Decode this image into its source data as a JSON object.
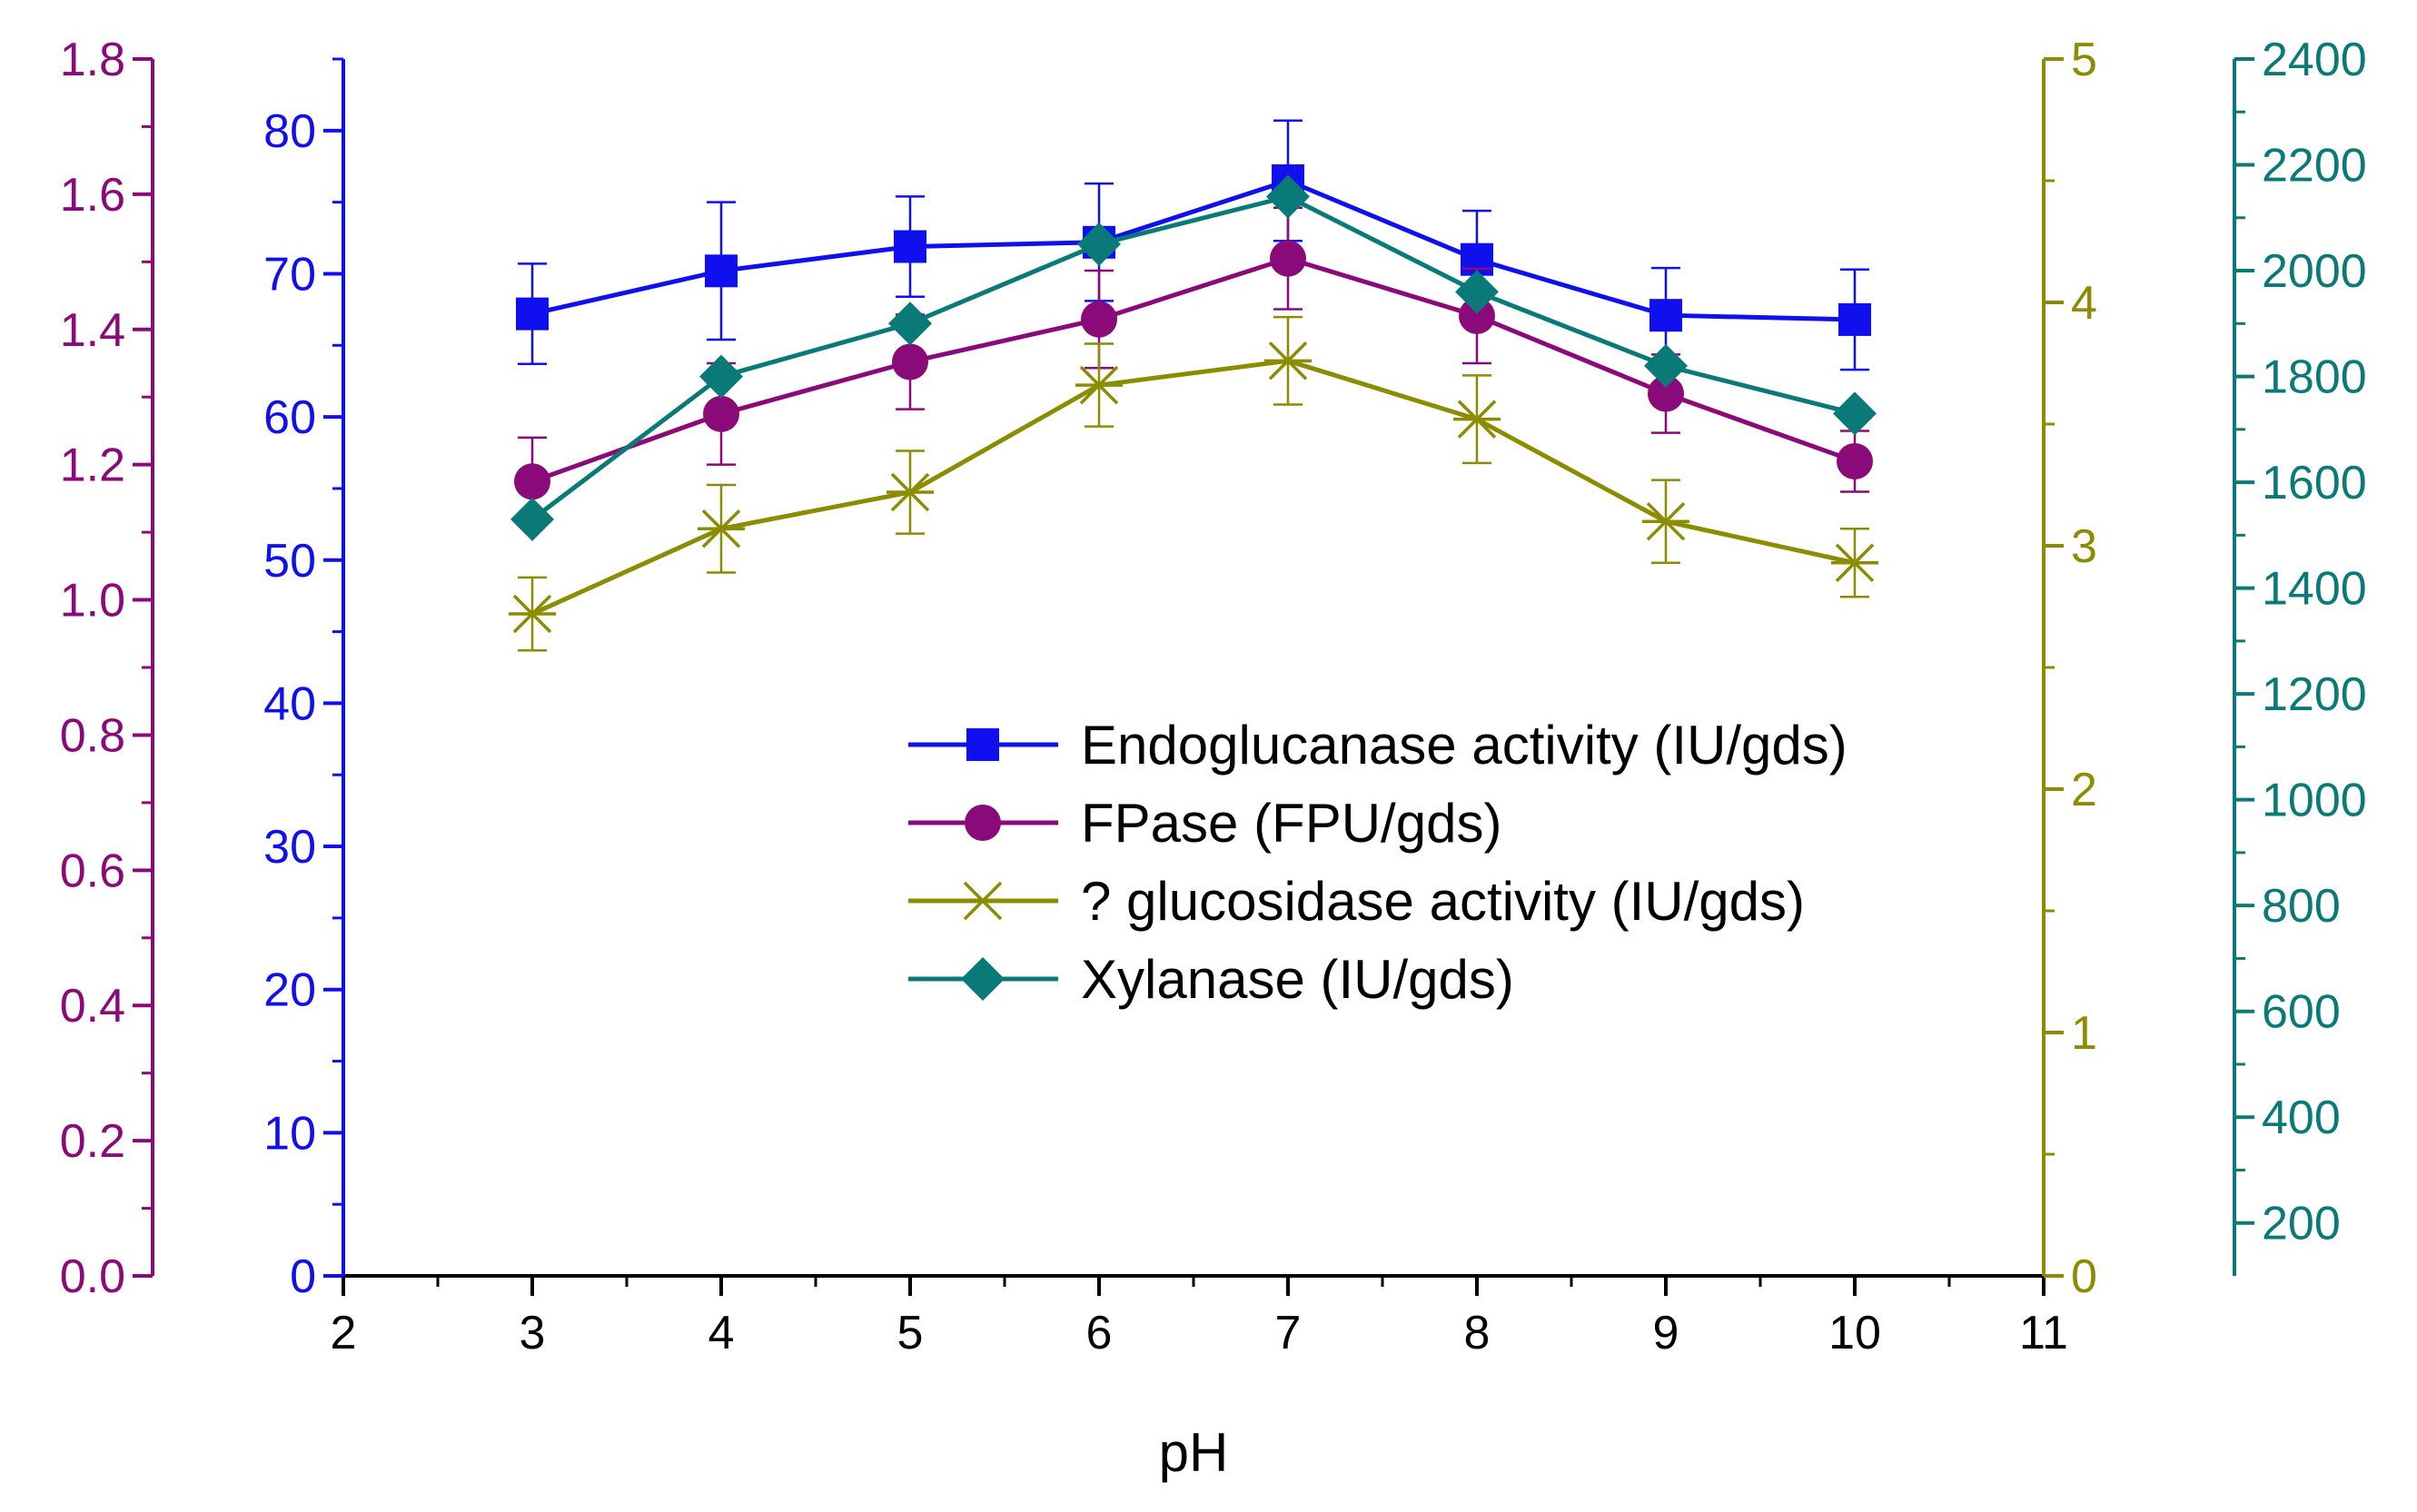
{
  "chart_data": {
    "type": "line",
    "title": "",
    "xlabel": "pH",
    "x": [
      3,
      4,
      5,
      6,
      7,
      8,
      9,
      10
    ],
    "xlim": [
      2,
      11
    ],
    "xticks": [
      "2",
      "3",
      "4",
      "5",
      "6",
      "7",
      "8",
      "9",
      "10",
      "11"
    ],
    "axes": [
      {
        "id": "fpase",
        "color": "#8B0A7A",
        "range": [
          0,
          1.8
        ],
        "ticks": [
          "0.0",
          "0.2",
          "0.4",
          "0.6",
          "0.8",
          "1.0",
          "1.2",
          "1.4",
          "1.6",
          "1.8"
        ]
      },
      {
        "id": "endo",
        "color": "#1010EE",
        "range": [
          0,
          85
        ],
        "ticks": [
          "0",
          "10",
          "20",
          "30",
          "40",
          "50",
          "60",
          "70",
          "80"
        ]
      },
      {
        "id": "gluco",
        "color": "#8C8C00",
        "range": [
          0,
          5
        ],
        "ticks": [
          "0",
          "1",
          "2",
          "3",
          "4",
          "5"
        ]
      },
      {
        "id": "xyl",
        "color": "#0A7A78",
        "range": [
          100,
          2400
        ],
        "ticks": [
          "200",
          "400",
          "600",
          "800",
          "1000",
          "1200",
          "1400",
          "1600",
          "1800",
          "2000",
          "2200",
          "2400"
        ]
      }
    ],
    "series": [
      {
        "name": "Endoglucanase activity (IU/gds)",
        "axis": "endo",
        "marker": "square",
        "values": [
          67.2,
          70.2,
          71.9,
          72.2,
          76.5,
          71.0,
          67.1,
          66.8
        ],
        "errors": [
          3.5,
          4.8,
          3.5,
          4.1,
          4.2,
          3.4,
          3.3,
          3.5
        ]
      },
      {
        "name": "FPase (FPU/gds)",
        "axis": "fpase",
        "marker": "circle",
        "values": [
          1.175,
          1.275,
          1.352,
          1.415,
          1.505,
          1.42,
          1.305,
          1.205
        ],
        "errors": [
          0.065,
          0.075,
          0.07,
          0.072,
          0.075,
          0.07,
          0.058,
          0.045
        ]
      },
      {
        "name": "? glucosidase activity (IU/gds)",
        "axis": "gluco",
        "marker": "star",
        "values": [
          2.72,
          3.07,
          3.22,
          3.66,
          3.76,
          3.52,
          3.1,
          2.93
        ],
        "errors": [
          0.15,
          0.18,
          0.17,
          0.17,
          0.18,
          0.18,
          0.17,
          0.14
        ]
      },
      {
        "name": "Xylanase (IU/gds)",
        "axis": "xyl",
        "marker": "diamond",
        "values": [
          1530,
          1800,
          1900,
          2050,
          2140,
          1960,
          1820,
          1730
        ],
        "errors": [
          0,
          0,
          0,
          0,
          0,
          0,
          0,
          0
        ]
      }
    ],
    "legend": "center-right"
  }
}
